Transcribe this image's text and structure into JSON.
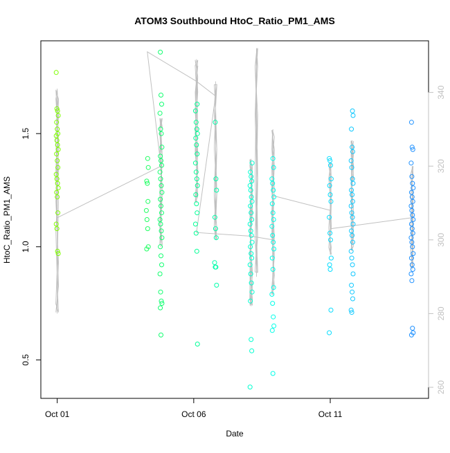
{
  "chart_data": {
    "type": "scatter",
    "title": "ATOM3 Southbound HtoC_Ratio_PM1_AMS",
    "xlabel": "Date",
    "ylabel": "HtoC_Ratio_PM1_AMS",
    "x_ticks": [
      "Oct 01",
      "Oct 06",
      "Oct 11"
    ],
    "y_ticks": [
      "0.5",
      "1.0",
      "1.5"
    ],
    "y2_ticks": [
      "260",
      "280",
      "300",
      "320",
      "340"
    ],
    "xlim_days": [
      0.4,
      14.6
    ],
    "ylim": [
      0.33,
      1.91
    ],
    "y2lim": [
      257,
      354
    ],
    "grid": false,
    "legend": "none",
    "point_color_scale": [
      "#7fff00",
      "#00ff7f",
      "#00ffff",
      "#1e90ff"
    ],
    "line_color": "#c0c0c0",
    "clusters": [
      {
        "day": 1.0,
        "values": [
          1.77,
          1.61,
          1.6,
          1.58,
          1.55,
          1.52,
          1.5,
          1.49,
          1.47,
          1.45,
          1.43,
          1.41,
          1.38,
          1.35,
          1.32,
          1.3,
          1.28,
          1.26,
          1.24,
          1.22,
          1.15,
          1.1,
          1.08,
          0.98,
          0.97
        ]
      },
      {
        "day": 4.3,
        "values": [
          1.39,
          1.35,
          1.29,
          1.28,
          1.2,
          1.16,
          1.12,
          1.08,
          1.0,
          0.99
        ]
      },
      {
        "day": 4.8,
        "values": [
          1.86,
          1.67,
          1.63,
          1.59,
          1.52,
          1.5,
          1.44,
          1.4,
          1.38,
          1.36,
          1.33,
          1.3,
          1.27,
          1.24,
          1.21,
          1.18,
          1.15,
          1.12,
          1.1,
          1.07,
          1.04,
          1.0,
          0.96,
          0.92,
          0.88,
          0.8,
          0.76,
          0.75,
          0.73,
          0.61
        ]
      },
      {
        "day": 6.1,
        "values": [
          1.63,
          1.6,
          1.55,
          1.52,
          1.5,
          1.48,
          1.45,
          1.41,
          1.37,
          1.33,
          1.3,
          1.27,
          1.23,
          1.19,
          1.15,
          1.1,
          1.06,
          0.98,
          0.57
        ]
      },
      {
        "day": 6.8,
        "values": [
          1.55,
          1.3,
          1.25,
          1.13,
          1.08,
          1.04,
          0.93,
          0.91,
          0.91,
          0.83
        ]
      },
      {
        "day": 8.1,
        "values": [
          1.37,
          1.33,
          1.31,
          1.29,
          1.27,
          1.25,
          1.22,
          1.2,
          1.18,
          1.15,
          1.12,
          1.1,
          1.07,
          1.05,
          1.02,
          1.0,
          0.97,
          0.95,
          0.92,
          0.88,
          0.84,
          0.8,
          0.76,
          0.59,
          0.54,
          0.38
        ]
      },
      {
        "day": 8.9,
        "values": [
          1.39,
          1.35,
          1.3,
          1.28,
          1.25,
          1.22,
          1.19,
          1.15,
          1.12,
          1.09,
          1.05,
          1.02,
          0.99,
          0.95,
          0.9,
          0.82,
          0.79,
          0.75,
          0.69,
          0.65,
          0.63,
          0.44
        ]
      },
      {
        "day": 11.0,
        "values": [
          1.39,
          1.38,
          1.36,
          1.3,
          1.27,
          1.23,
          1.2,
          1.13,
          1.06,
          1.03,
          0.95,
          0.92,
          0.9,
          0.72,
          0.62
        ]
      },
      {
        "day": 11.8,
        "values": [
          1.6,
          1.58,
          1.52,
          1.44,
          1.42,
          1.38,
          1.35,
          1.3,
          1.28,
          1.25,
          1.23,
          1.2,
          1.18,
          1.15,
          1.13,
          1.1,
          1.07,
          1.05,
          1.02,
          0.98,
          0.95,
          0.92,
          0.88,
          0.83,
          0.8,
          0.77,
          0.72,
          0.71
        ]
      },
      {
        "day": 14.0,
        "values": [
          1.55,
          1.44,
          1.43,
          1.37,
          1.31,
          1.28,
          1.26,
          1.24,
          1.22,
          1.2,
          1.18,
          1.16,
          1.14,
          1.12,
          1.1,
          1.08,
          1.06,
          1.04,
          1.02,
          1.0,
          0.97,
          0.95,
          0.92,
          0.9,
          0.88,
          0.85,
          0.64,
          0.62,
          0.61
        ]
      }
    ],
    "secondary_track": [
      {
        "day": 1.0,
        "value": 306
      },
      {
        "day": 4.8,
        "value": 320
      },
      {
        "day": 4.3,
        "value": 351
      },
      {
        "day": 6.1,
        "value": 343
      },
      {
        "day": 6.8,
        "value": 339
      },
      {
        "day": 6.1,
        "value": 302
      },
      {
        "day": 8.1,
        "value": 301
      },
      {
        "day": 8.9,
        "value": 300
      },
      {
        "day": 8.9,
        "value": 312
      },
      {
        "day": 11.0,
        "value": 308
      },
      {
        "day": 11.0,
        "value": 303
      },
      {
        "day": 14.0,
        "value": 306
      }
    ],
    "secondary_spikes": [
      {
        "day": 1.0,
        "low": 280,
        "high": 341
      },
      {
        "day": 4.8,
        "low": 298,
        "high": 333
      },
      {
        "day": 6.1,
        "low": 310,
        "high": 349
      },
      {
        "day": 6.8,
        "low": 300,
        "high": 343
      },
      {
        "day": 8.1,
        "low": 282,
        "high": 322
      },
      {
        "day": 8.3,
        "low": 290,
        "high": 352
      },
      {
        "day": 8.9,
        "low": 285,
        "high": 330
      },
      {
        "day": 11.0,
        "low": 296,
        "high": 321
      },
      {
        "day": 11.8,
        "low": 297,
        "high": 327
      },
      {
        "day": 14.0,
        "low": 292,
        "high": 320
      }
    ]
  }
}
